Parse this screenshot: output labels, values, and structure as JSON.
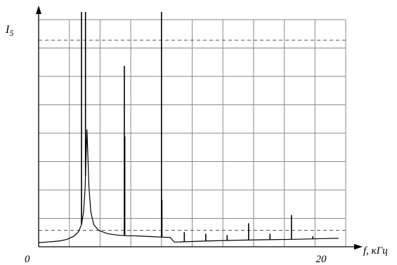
{
  "chart_data": {
    "type": "line",
    "title": "",
    "ylabel": "I5",
    "ylabel_main": "I",
    "ylabel_sub": "5",
    "xlabel": "f, кГц",
    "xlim": [
      0,
      21.5
    ],
    "ylim": [
      0,
      100
    ],
    "x_ticks": [
      {
        "value": 0,
        "label": "0"
      },
      {
        "value": 20,
        "label": "20"
      }
    ],
    "grid": true,
    "grid_vertical_count": 10,
    "grid_horizontal_count": 8,
    "dashed_reference_levels": [
      88,
      7
    ],
    "series": [
      {
        "values_description_free": true,
        "color": "#000000",
        "baseline_points": [
          [
            0.0,
            1.8
          ],
          [
            0.5,
            2.0
          ],
          [
            1.0,
            2.2
          ],
          [
            1.5,
            2.5
          ],
          [
            2.0,
            3.2
          ],
          [
            2.5,
            4.6
          ],
          [
            2.8,
            6.5
          ],
          [
            3.0,
            9.5
          ],
          [
            3.15,
            15.0
          ],
          [
            3.25,
            25.0
          ],
          [
            3.33,
            40.0
          ],
          [
            3.38,
            50.0
          ],
          [
            3.43,
            42.0
          ],
          [
            3.52,
            26.0
          ],
          [
            3.65,
            15.0
          ],
          [
            3.85,
            9.5
          ],
          [
            4.2,
            7.0
          ],
          [
            4.8,
            5.6
          ],
          [
            5.5,
            5.0
          ],
          [
            6.2,
            4.7
          ],
          [
            6.6,
            4.7
          ],
          [
            7.2,
            4.5
          ],
          [
            8.0,
            4.3
          ],
          [
            8.7,
            4.1
          ],
          [
            9.2,
            4.0
          ],
          [
            9.5,
            2.0
          ],
          [
            10.5,
            2.2
          ],
          [
            12.0,
            2.5
          ],
          [
            14.0,
            2.8
          ],
          [
            16.0,
            3.0
          ],
          [
            18.0,
            3.2
          ],
          [
            20.0,
            3.5
          ],
          [
            21.0,
            3.6
          ]
        ],
        "peaks": [
          {
            "x": 3.0,
            "y": 100,
            "base": 9.5
          },
          {
            "x": 3.28,
            "y": 100,
            "base": 30
          },
          {
            "x": 6.0,
            "y": 77,
            "base": 4.8
          },
          {
            "x": 6.03,
            "y": 47,
            "base": 4.8
          },
          {
            "x": 8.6,
            "y": 100,
            "base": 4.2
          },
          {
            "x": 8.63,
            "y": 20,
            "base": 4.2
          },
          {
            "x": 10.2,
            "y": 6.2,
            "base": 2.3
          },
          {
            "x": 11.7,
            "y": 5.5,
            "base": 2.4
          },
          {
            "x": 13.2,
            "y": 5.0,
            "base": 2.6
          },
          {
            "x": 14.7,
            "y": 10.0,
            "base": 2.8
          },
          {
            "x": 16.2,
            "y": 5.5,
            "base": 3.0
          },
          {
            "x": 17.7,
            "y": 13.5,
            "base": 3.2
          },
          {
            "x": 19.2,
            "y": 4.5,
            "base": 3.4
          }
        ]
      }
    ]
  }
}
